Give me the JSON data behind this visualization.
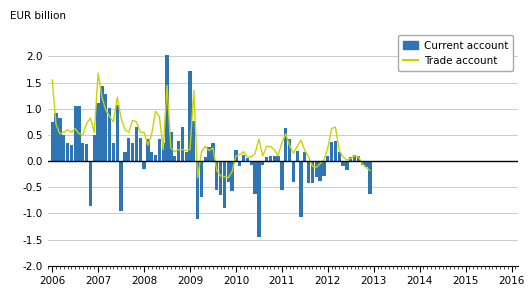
{
  "ylabel": "EUR billion",
  "ylim": [
    -2.0,
    2.5
  ],
  "yticks": [
    -2.0,
    -1.5,
    -1.0,
    -0.5,
    0.0,
    0.5,
    1.0,
    1.5,
    2.0
  ],
  "bar_color": "#2e75b6",
  "line_color": "#c8d400",
  "background_color": "#ffffff",
  "grid_color": "#b8b8b8",
  "start_year": 2006,
  "end_year": 2016,
  "current_account": [
    0.75,
    0.92,
    0.82,
    0.5,
    0.35,
    0.3,
    1.05,
    1.05,
    0.35,
    0.33,
    -0.85,
    0.5,
    1.1,
    1.44,
    1.28,
    1.02,
    0.35,
    1.07,
    -0.95,
    0.18,
    0.45,
    0.35,
    0.65,
    0.45,
    -0.15,
    0.42,
    0.18,
    0.12,
    0.42,
    0.35,
    2.02,
    0.55,
    0.1,
    0.38,
    0.65,
    0.18,
    1.72,
    0.77,
    -1.1,
    -0.68,
    0.08,
    0.27,
    0.35,
    -0.55,
    -0.65,
    -0.9,
    -0.4,
    -0.58,
    0.22,
    -0.1,
    0.12,
    0.05,
    -0.08,
    -0.62,
    -1.46,
    -0.08,
    0.07,
    0.1,
    0.1,
    0.1,
    -0.55,
    0.63,
    0.42,
    -0.4,
    0.2,
    -1.07,
    0.18,
    -0.42,
    -0.42,
    -0.3,
    -0.38,
    -0.28,
    0.1,
    0.37,
    0.38,
    0.18,
    -0.1,
    -0.18,
    0.08,
    0.12,
    0.1,
    -0.08,
    -0.12,
    -0.62
  ],
  "trade_account": [
    1.55,
    0.7,
    0.52,
    0.55,
    0.6,
    0.55,
    0.62,
    0.52,
    0.5,
    0.72,
    0.82,
    0.55,
    1.68,
    1.22,
    0.98,
    0.85,
    0.75,
    1.22,
    0.82,
    0.6,
    0.55,
    0.78,
    0.75,
    0.55,
    0.55,
    0.3,
    0.52,
    0.95,
    0.85,
    0.22,
    1.45,
    0.25,
    0.18,
    0.22,
    0.22,
    0.2,
    0.22,
    1.35,
    -0.32,
    0.18,
    0.28,
    0.2,
    0.25,
    -0.18,
    -0.28,
    -0.3,
    -0.32,
    -0.2,
    0.1,
    0.12,
    0.18,
    0.08,
    0.08,
    0.15,
    0.42,
    0.1,
    0.28,
    0.28,
    0.22,
    0.1,
    0.35,
    0.52,
    0.3,
    0.15,
    0.28,
    0.4,
    0.2,
    0.08,
    -0.1,
    -0.12,
    -0.05,
    0.02,
    0.25,
    0.62,
    0.65,
    0.2,
    0.08,
    0.02,
    0.05,
    0.1,
    0.08,
    -0.05,
    -0.12,
    -0.18
  ],
  "legend_labels": [
    "Current account",
    "Trade account"
  ],
  "xtick_years": [
    2006,
    2007,
    2008,
    2009,
    2010,
    2011,
    2012,
    2013,
    2014,
    2015,
    2016
  ]
}
